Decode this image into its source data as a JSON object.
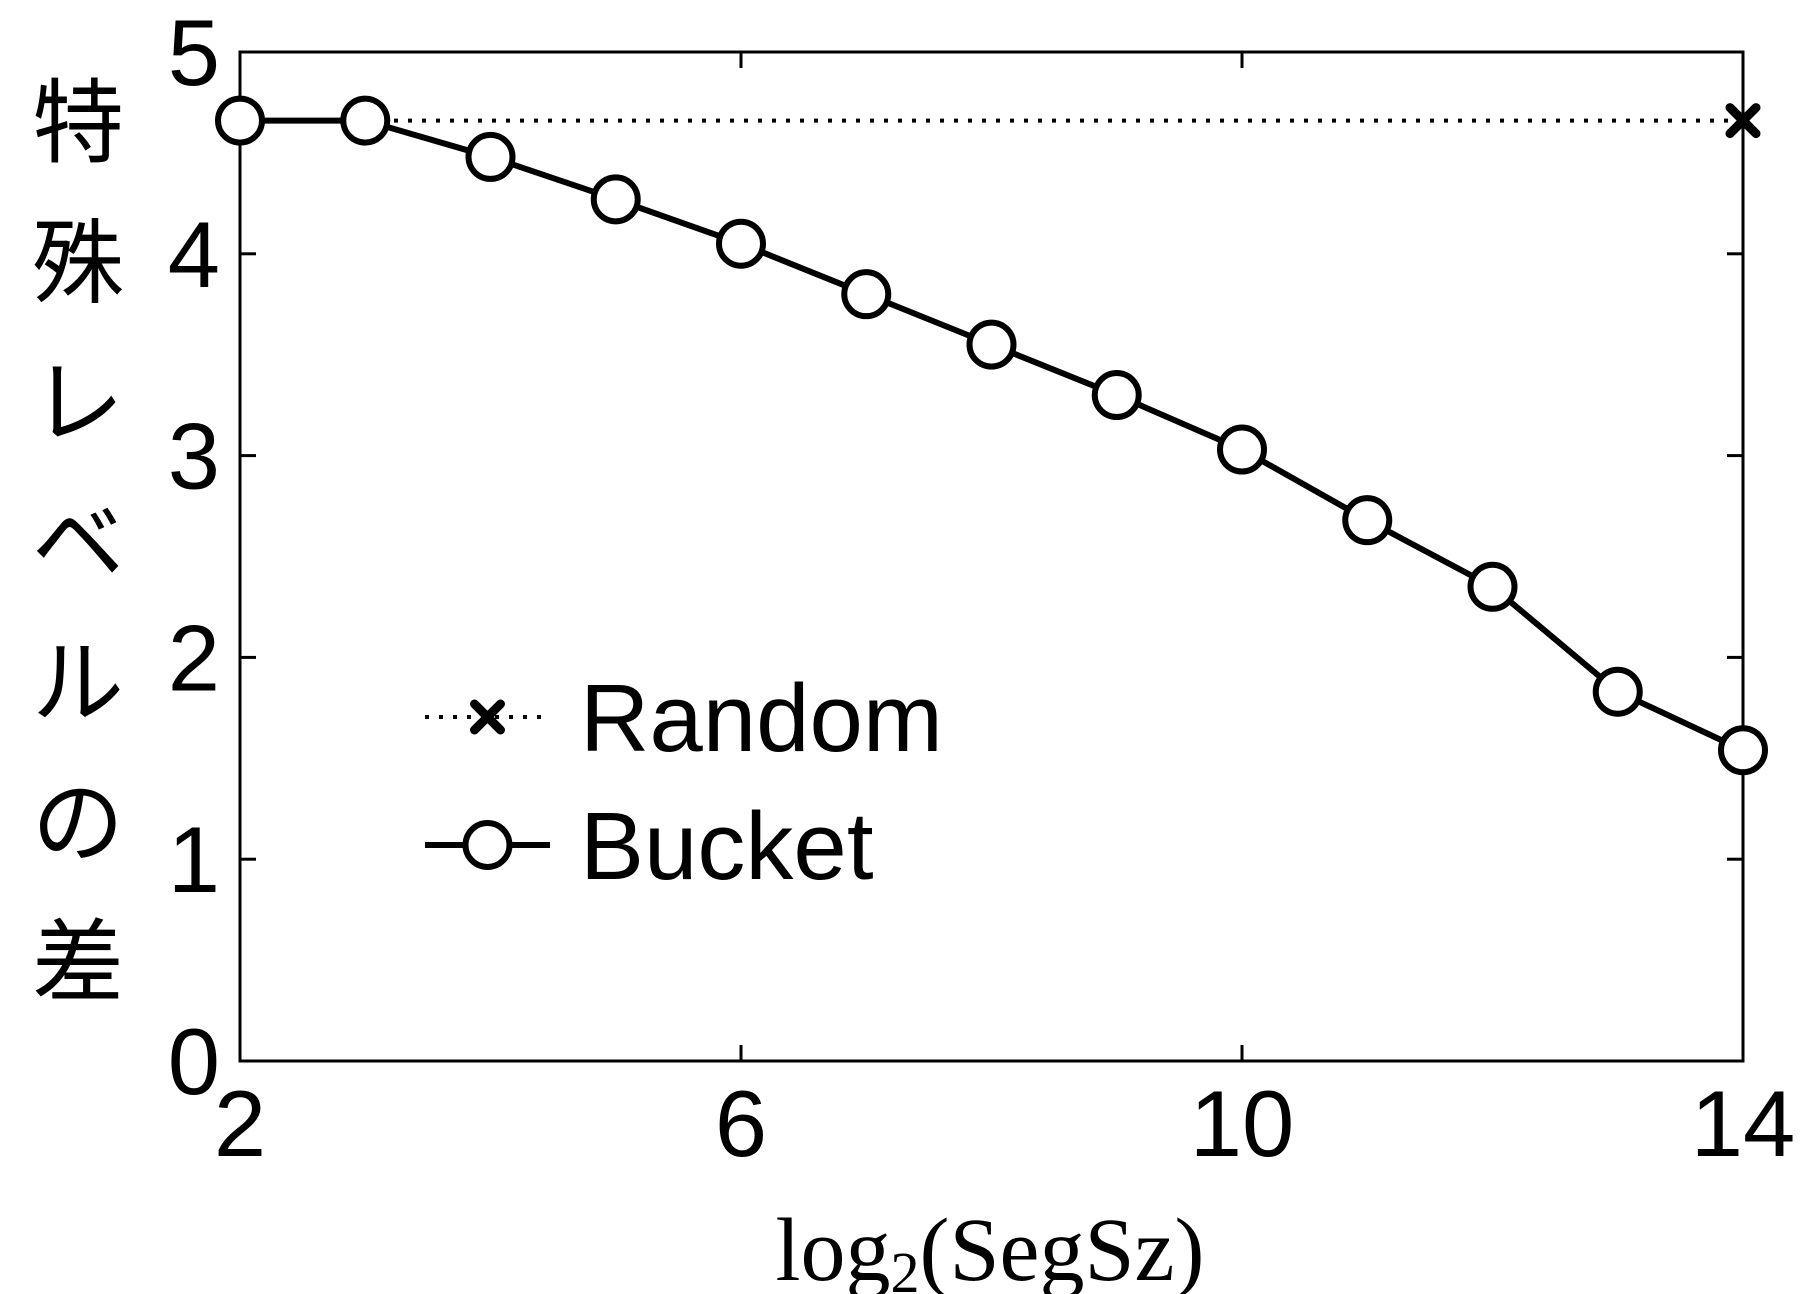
{
  "chart_data": {
    "type": "line",
    "xlabel_parts": [
      "log",
      "2",
      "(SegSz)"
    ],
    "ylabel_chars": [
      "特",
      "殊",
      "レ",
      "ベ",
      "ル",
      "の",
      "差"
    ],
    "xlim": [
      2,
      14
    ],
    "ylim": [
      0,
      5
    ],
    "xticks": [
      2,
      6,
      10,
      14
    ],
    "yticks": [
      0,
      1,
      2,
      3,
      4,
      5
    ],
    "grid": false,
    "legend_position": "center-left",
    "series": [
      {
        "name": "Random",
        "style": "dotted",
        "marker": "x",
        "color": "#000000",
        "x": [
          2,
          14
        ],
        "y": [
          4.66,
          4.66
        ]
      },
      {
        "name": "Bucket",
        "style": "solid",
        "marker": "o",
        "color": "#000000",
        "x": [
          2,
          3,
          4,
          5,
          6,
          7,
          8,
          9,
          10,
          11,
          12,
          13,
          14
        ],
        "y": [
          4.66,
          4.66,
          4.48,
          4.27,
          4.05,
          3.8,
          3.55,
          3.3,
          3.03,
          2.68,
          2.35,
          1.83,
          1.54
        ]
      }
    ]
  }
}
